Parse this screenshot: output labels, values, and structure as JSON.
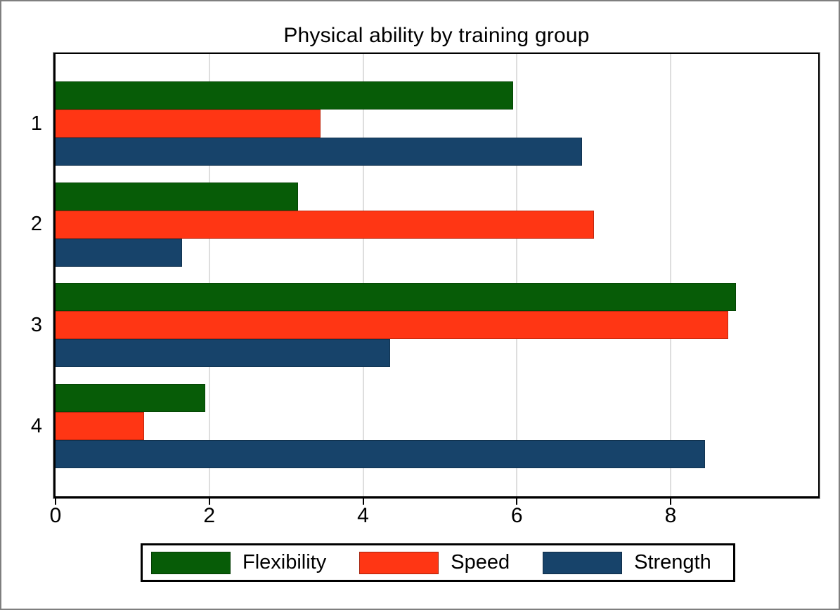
{
  "title": "Physical ability by training group",
  "colors": {
    "flexibility": "#075c07",
    "speed": "#ff3614",
    "strength": "#17436a",
    "gridline": "#dedede",
    "axis": "#000000",
    "frame_outline": "#aaaaaa",
    "outer_border": "#7f7f7f",
    "background": "#ffffff"
  },
  "chart_data": {
    "type": "bar",
    "orientation": "horizontal",
    "title": "Physical ability by training group",
    "xlabel": "",
    "ylabel": "",
    "categories": [
      "1",
      "2",
      "3",
      "4"
    ],
    "series": [
      {
        "name": "Flexibility",
        "color": "#075c07",
        "values": [
          5.95,
          3.15,
          8.85,
          1.95
        ]
      },
      {
        "name": "Speed",
        "color": "#ff3614",
        "values": [
          3.45,
          7.0,
          8.75,
          1.15
        ]
      },
      {
        "name": "Strength",
        "color": "#17436a",
        "values": [
          6.85,
          1.65,
          4.35,
          8.45
        ]
      }
    ],
    "x_ticks": [
      "0",
      "2",
      "4",
      "6",
      "8"
    ],
    "x_tick_values": [
      0,
      2,
      4,
      6,
      8
    ],
    "xlim": [
      0,
      9.92
    ],
    "grid": true,
    "legend_position": "bottom"
  }
}
